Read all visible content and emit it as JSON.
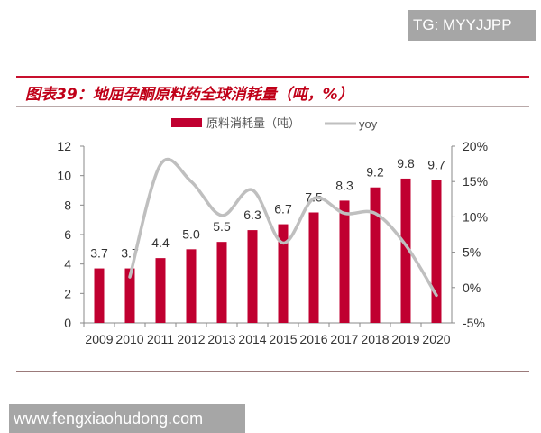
{
  "watermarks": {
    "top": "TG: MYYJJPP",
    "bottom": "www.fengxiaohudong.com"
  },
  "chart_data": {
    "type": "bar+line",
    "title": "图表39：地屈孕酮原料药全球消耗量（吨，%）",
    "categories": [
      "2009",
      "2010",
      "2011",
      "2012",
      "2013",
      "2014",
      "2015",
      "2016",
      "2017",
      "2018",
      "2019",
      "2020"
    ],
    "series": [
      {
        "name": "原料消耗量（吨）",
        "type": "bar",
        "axis": "left",
        "color": "#c00030",
        "values": [
          3.7,
          3.7,
          4.4,
          5.0,
          5.5,
          6.3,
          6.7,
          7.5,
          8.3,
          9.2,
          9.8,
          9.7
        ],
        "labels": [
          "3.7",
          "3.7",
          "4.4",
          "5.0",
          "5.5",
          "6.3",
          "6.7",
          "7.5",
          "8.3",
          "9.2",
          "9.8",
          "9.7"
        ]
      },
      {
        "name": "yoy",
        "type": "line",
        "axis": "right",
        "color": "#bfbfbf",
        "values": [
          null,
          1.5,
          17.4,
          15.0,
          10.2,
          13.8,
          6.3,
          12.6,
          10.5,
          10.5,
          6.0,
          -1.1
        ]
      }
    ],
    "left_axis": {
      "ylim": [
        0,
        12
      ],
      "ticks": [
        "0",
        "2",
        "4",
        "6",
        "8",
        "10",
        "12"
      ]
    },
    "right_axis": {
      "ylim": [
        -5,
        20
      ],
      "ticks": [
        "-5%",
        "0%",
        "5%",
        "10%",
        "15%",
        "20%"
      ]
    },
    "legend": "top-center",
    "grid": false
  }
}
